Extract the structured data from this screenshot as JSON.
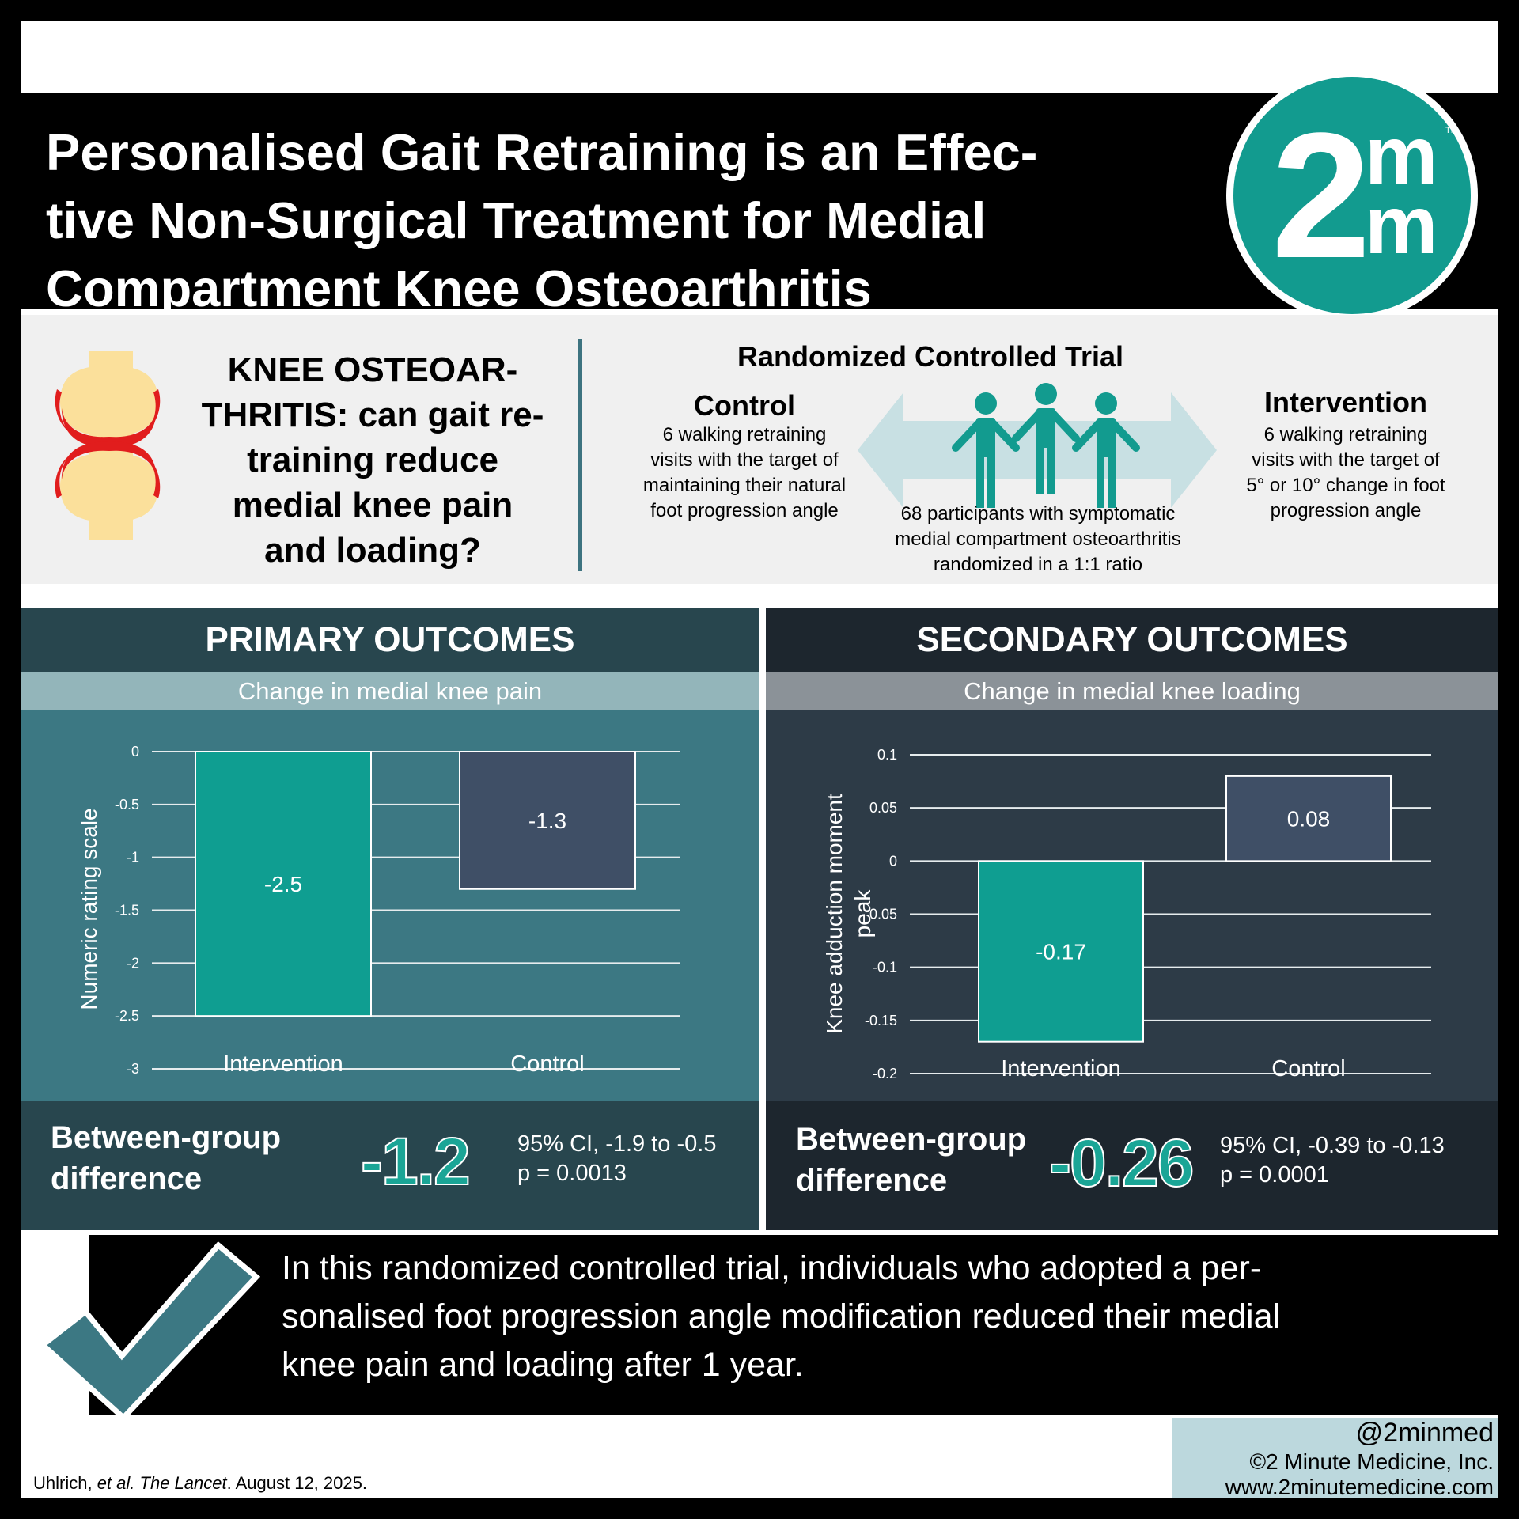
{
  "header": {
    "title_lines": [
      "Personalised Gait Retraining is an Effec-",
      "tive Non-Surgical Treatment for Medial",
      "Compartment Knee Osteoarthritis"
    ],
    "logo": {
      "digit": "2",
      "m_top": "m",
      "m_bottom": "m",
      "tm": "TM",
      "color": "#129b8f"
    }
  },
  "study": {
    "icon": "knee-joint-icon",
    "question_lines": [
      "KNEE OSTEOAR-",
      "THRITIS: can gait re-",
      "training reduce",
      "medial knee pain",
      "and loading?"
    ],
    "design_title": "Randomized Controlled Trial",
    "control": {
      "title": "Control",
      "text_lines": [
        "6 walking retraining",
        "visits with the target of",
        "maintaining their natural",
        "foot progression angle"
      ]
    },
    "intervention": {
      "title": "Intervention",
      "text_lines": [
        "6 walking retraining",
        "visits with the target of",
        "5° or 10° change in foot",
        "progression angle"
      ]
    },
    "participants_lines": [
      "68 participants with symptomatic",
      "medial compartment osteoarthritis",
      "randomized in a 1:1 ratio"
    ],
    "participants_icon": "people-icon"
  },
  "primary": {
    "heading": "PRIMARY OUTCOMES",
    "subheading": "Change in medial knee pain",
    "diff_label_lines": [
      "Between-group",
      "difference"
    ],
    "diff_value": "-1.2",
    "ci": "95% CI, -1.9 to -0.5",
    "p": "p = 0.0013"
  },
  "secondary": {
    "heading": "SECONDARY OUTCOMES",
    "subheading": "Change in medial knee loading",
    "diff_label_lines": [
      "Between-group",
      "difference"
    ],
    "diff_value": "-0.26",
    "ci": "95% CI, -0.39 to -0.13",
    "p": "p = 0.0001"
  },
  "chart_data": [
    {
      "type": "bar",
      "categories": [
        "Intervention",
        "Control"
      ],
      "values": [
        -2.5,
        -1.3
      ],
      "value_labels": [
        "-2.5",
        "-1.3"
      ],
      "colors": [
        "#0f9e91",
        "#3f4f66"
      ],
      "ylabel": "Numeric rating scale",
      "ylim": [
        -3,
        0
      ],
      "yticks": [
        0,
        -0.5,
        -1,
        -1.5,
        -2,
        -2.5,
        -3
      ],
      "ytick_labels": [
        "0",
        "-0.5",
        "-1",
        "-1.5",
        "-2",
        "-2.5",
        "-3"
      ],
      "grid": true
    },
    {
      "type": "bar",
      "categories": [
        "Intervention",
        "Control"
      ],
      "values": [
        -0.17,
        0.08
      ],
      "value_labels": [
        "-0.17",
        "0.08"
      ],
      "colors": [
        "#0f9e91",
        "#3f4f66"
      ],
      "ylabel_lines": [
        "Knee adduction moment",
        "peak"
      ],
      "ylim": [
        -0.2,
        0.1
      ],
      "yticks": [
        0.1,
        0.05,
        0,
        -0.05,
        -0.1,
        -0.15,
        -0.2
      ],
      "ytick_labels": [
        "0.1",
        "0.05",
        "0",
        "-0.05",
        "-0.1",
        "-0.15",
        "-0.2"
      ],
      "grid": true
    }
  ],
  "conclusion": {
    "icon": "checkmark-icon",
    "text_lines": [
      "In this randomized controlled trial, individuals who adopted a per-",
      "sonalised foot progression angle modification reduced their medial",
      "knee pain and loading after 1 year."
    ]
  },
  "footer": {
    "citation_author": "Uhlrich, ",
    "citation_etal": "et al.",
    "citation_journal": "The Lancet",
    "citation_date": ". August 12, 2025.",
    "handle": "@2minmed",
    "copyright": "©2 Minute Medicine, Inc.",
    "website": "www.2minutemedicine.com"
  }
}
